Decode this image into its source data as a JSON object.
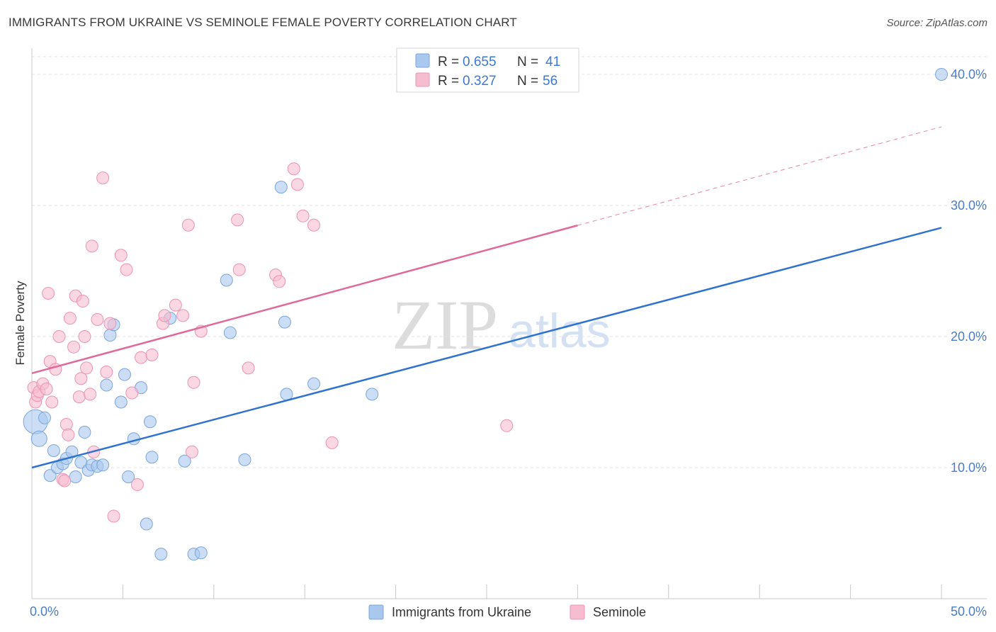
{
  "header": {
    "title": "IMMIGRANTS FROM UKRAINE VS SEMINOLE FEMALE POVERTY CORRELATION CHART",
    "source": "Source: ZipAtlas.com"
  },
  "watermark": {
    "zip": "ZIP",
    "atlas": "atlas"
  },
  "colors": {
    "blue_fill": "#a9c8ee",
    "blue_stroke": "#7aa6dc",
    "blue_line": "#2f72d0",
    "pink_fill": "#f6bcd0",
    "pink_stroke": "#ec93b2",
    "pink_line": "#e0699a",
    "grid": "#e3e3e3",
    "tick_text": "#4a7dc7"
  },
  "legend": {
    "rows": [
      {
        "r_label": "R = ",
        "r_value": "0.655",
        "n_label": "N = ",
        "n_value": "41"
      },
      {
        "r_label": "R = ",
        "r_value": "0.327",
        "n_label": "N = ",
        "n_value": "56"
      }
    ]
  },
  "chart_data": {
    "type": "scatter",
    "title": "IMMIGRANTS FROM UKRAINE VS SEMINOLE FEMALE POVERTY CORRELATION CHART",
    "xlabel": "",
    "ylabel": "Female Poverty",
    "xlim": [
      0,
      50
    ],
    "ylim": [
      0,
      42
    ],
    "x_tick_labels": [
      "0.0%",
      "50.0%"
    ],
    "y_ticks": [
      10,
      20,
      30,
      40
    ],
    "y_tick_labels": [
      "10.0%",
      "20.0%",
      "30.0%",
      "40.0%"
    ],
    "grid": true,
    "series": [
      {
        "name": "Immigrants from Ukraine",
        "r": 0.655,
        "n": 41,
        "trend": {
          "x": [
            0,
            50
          ],
          "y": [
            10.0,
            28.3
          ]
        },
        "points": [
          [
            0.2,
            13.5
          ],
          [
            0.4,
            12.2
          ],
          [
            0.7,
            13.8
          ],
          [
            1.0,
            9.4
          ],
          [
            1.2,
            11.3
          ],
          [
            1.4,
            10.0
          ],
          [
            1.7,
            10.3
          ],
          [
            1.9,
            10.7
          ],
          [
            2.2,
            11.2
          ],
          [
            2.4,
            9.3
          ],
          [
            2.7,
            10.4
          ],
          [
            2.9,
            12.7
          ],
          [
            3.1,
            9.8
          ],
          [
            3.3,
            10.2
          ],
          [
            3.6,
            10.1
          ],
          [
            3.9,
            10.2
          ],
          [
            4.1,
            16.3
          ],
          [
            4.3,
            20.1
          ],
          [
            4.5,
            20.9
          ],
          [
            4.9,
            15.0
          ],
          [
            5.1,
            17.1
          ],
          [
            5.3,
            9.3
          ],
          [
            5.6,
            12.2
          ],
          [
            6.0,
            16.1
          ],
          [
            6.3,
            5.7
          ],
          [
            6.5,
            13.5
          ],
          [
            6.6,
            10.8
          ],
          [
            7.1,
            3.4
          ],
          [
            7.6,
            21.4
          ],
          [
            8.4,
            10.5
          ],
          [
            8.9,
            3.4
          ],
          [
            9.3,
            3.5
          ],
          [
            10.7,
            24.3
          ],
          [
            10.9,
            20.3
          ],
          [
            11.7,
            10.6
          ],
          [
            13.7,
            31.4
          ],
          [
            13.9,
            21.1
          ],
          [
            14.0,
            15.6
          ],
          [
            15.5,
            16.4
          ],
          [
            18.7,
            15.6
          ],
          [
            50.0,
            40.0
          ]
        ]
      },
      {
        "name": "Seminole",
        "r": 0.327,
        "n": 56,
        "trend": {
          "x": [
            0,
            50
          ],
          "y": [
            17.2,
            36.0
          ]
        },
        "trend_solid_until_x": 30,
        "points": [
          [
            0.1,
            16.1
          ],
          [
            0.2,
            15.0
          ],
          [
            0.3,
            15.5
          ],
          [
            0.4,
            15.8
          ],
          [
            0.6,
            16.4
          ],
          [
            0.8,
            16.0
          ],
          [
            0.9,
            23.3
          ],
          [
            1.0,
            18.1
          ],
          [
            1.1,
            15.0
          ],
          [
            1.3,
            17.5
          ],
          [
            1.5,
            20.0
          ],
          [
            1.7,
            9.1
          ],
          [
            1.8,
            9.0
          ],
          [
            1.9,
            13.3
          ],
          [
            2.0,
            12.5
          ],
          [
            2.1,
            21.4
          ],
          [
            2.3,
            19.2
          ],
          [
            2.4,
            23.1
          ],
          [
            2.6,
            15.4
          ],
          [
            2.7,
            16.8
          ],
          [
            2.8,
            22.7
          ],
          [
            2.9,
            20.0
          ],
          [
            3.0,
            17.6
          ],
          [
            3.2,
            15.6
          ],
          [
            3.3,
            26.9
          ],
          [
            3.4,
            11.2
          ],
          [
            3.6,
            21.3
          ],
          [
            3.9,
            32.1
          ],
          [
            4.1,
            17.3
          ],
          [
            4.3,
            21.0
          ],
          [
            4.5,
            6.3
          ],
          [
            4.9,
            26.2
          ],
          [
            5.2,
            25.1
          ],
          [
            5.5,
            15.7
          ],
          [
            5.8,
            8.7
          ],
          [
            6.0,
            18.4
          ],
          [
            6.6,
            18.6
          ],
          [
            7.2,
            21.0
          ],
          [
            7.3,
            21.6
          ],
          [
            7.9,
            22.4
          ],
          [
            8.3,
            21.6
          ],
          [
            8.6,
            28.5
          ],
          [
            8.8,
            11.2
          ],
          [
            8.9,
            16.5
          ],
          [
            9.3,
            20.4
          ],
          [
            11.3,
            28.9
          ],
          [
            11.4,
            25.1
          ],
          [
            11.9,
            17.6
          ],
          [
            13.4,
            24.7
          ],
          [
            13.6,
            24.2
          ],
          [
            14.4,
            32.8
          ],
          [
            14.6,
            31.6
          ],
          [
            14.9,
            29.2
          ],
          [
            15.5,
            28.5
          ],
          [
            16.5,
            11.9
          ],
          [
            26.1,
            13.2
          ]
        ]
      }
    ]
  },
  "bottom_legend": {
    "items": [
      {
        "label": "Immigrants from Ukraine"
      },
      {
        "label": "Seminole"
      }
    ]
  }
}
